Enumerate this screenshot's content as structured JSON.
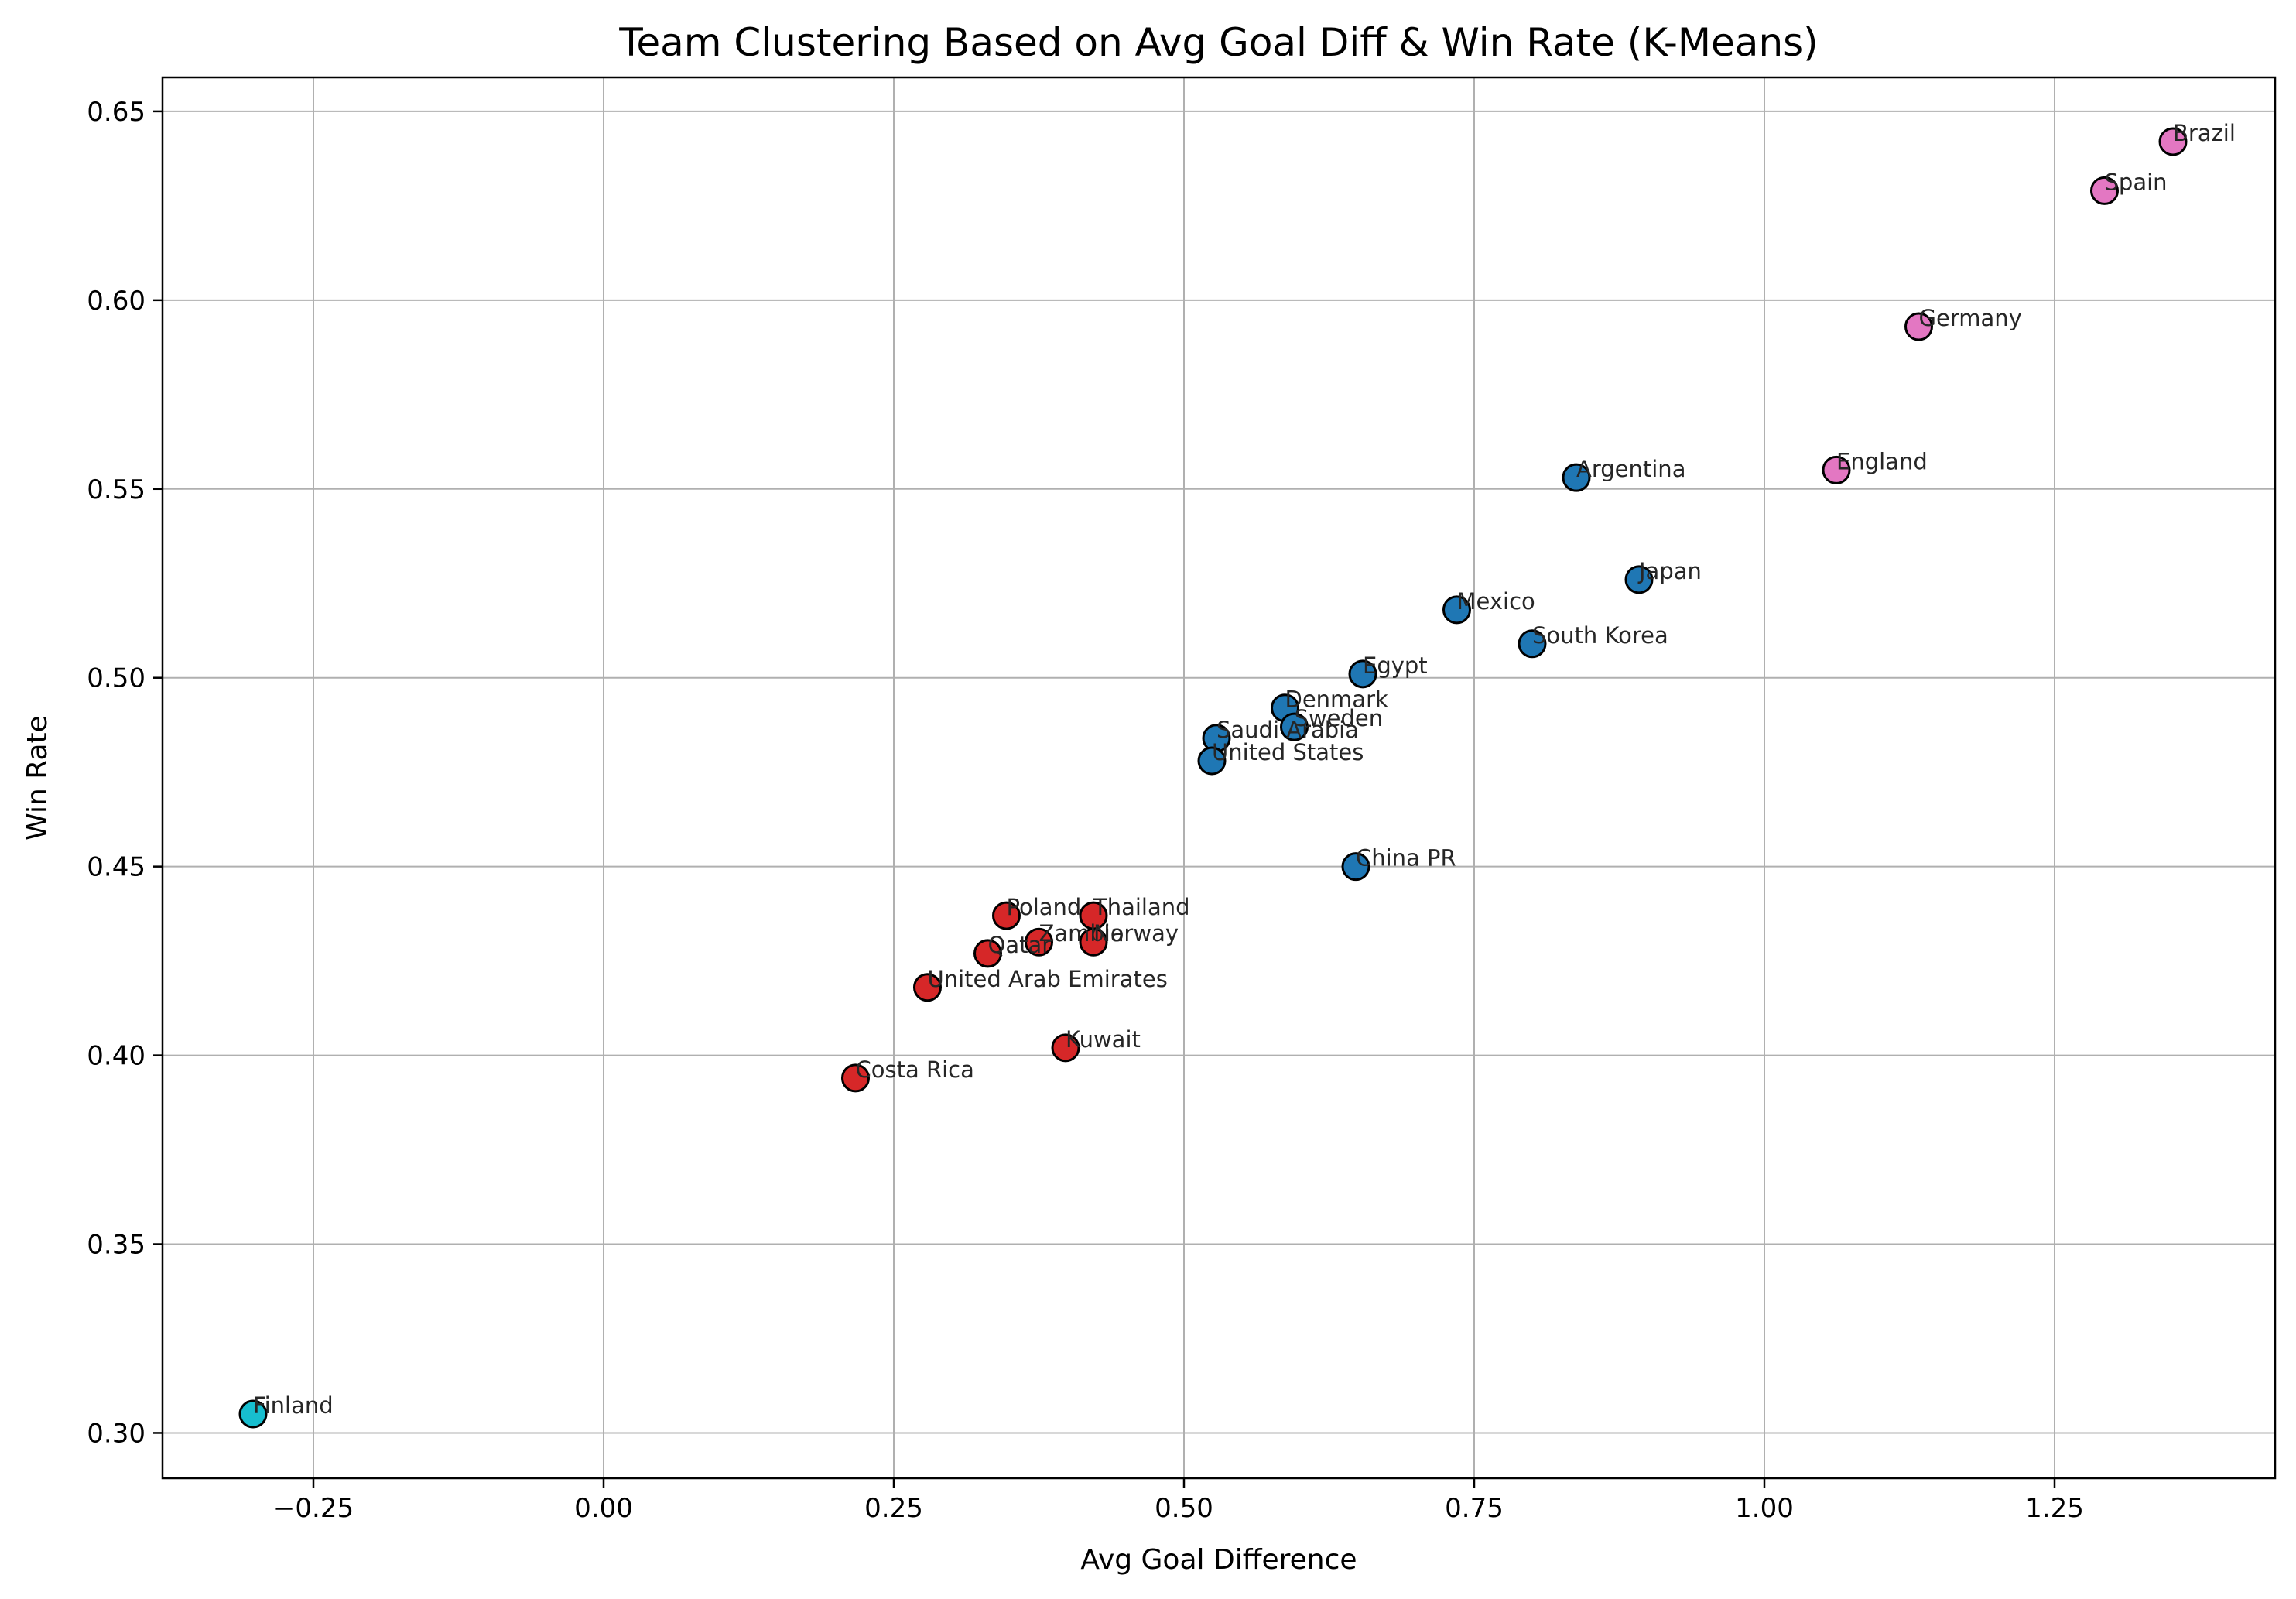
{
  "chart_data": {
    "type": "scatter",
    "title": "Team Clustering Based on Avg Goal Diff & Win Rate (K-Means)",
    "xlabel": "Avg Goal Difference",
    "ylabel": "Win Rate",
    "xlim": [
      -0.38,
      1.44
    ],
    "ylim": [
      0.288,
      0.659
    ],
    "xticks": [
      -0.25,
      0.0,
      0.25,
      0.5,
      0.75,
      1.0,
      1.25
    ],
    "xtick_labels": [
      "−0.25",
      "0.00",
      "0.25",
      "0.50",
      "0.75",
      "1.00",
      "1.25"
    ],
    "yticks": [
      0.3,
      0.35,
      0.4,
      0.45,
      0.5,
      0.55,
      0.6,
      0.65
    ],
    "ytick_labels": [
      "0.30",
      "0.35",
      "0.40",
      "0.45",
      "0.50",
      "0.55",
      "0.60",
      "0.65"
    ],
    "grid": true,
    "cluster_colors": {
      "0": "#1f77b4",
      "1": "#d62728",
      "2": "#e377c2",
      "3": "#17becf"
    },
    "points": [
      {
        "label": "Brazil",
        "x": 1.352,
        "y": 0.642,
        "cluster": 2
      },
      {
        "label": "Spain",
        "x": 1.293,
        "y": 0.629,
        "cluster": 2
      },
      {
        "label": "Germany",
        "x": 1.133,
        "y": 0.593,
        "cluster": 2
      },
      {
        "label": "England",
        "x": 1.062,
        "y": 0.555,
        "cluster": 2
      },
      {
        "label": "Argentina",
        "x": 0.838,
        "y": 0.553,
        "cluster": 0
      },
      {
        "label": "Japan",
        "x": 0.892,
        "y": 0.526,
        "cluster": 0
      },
      {
        "label": "Mexico",
        "x": 0.735,
        "y": 0.518,
        "cluster": 0
      },
      {
        "label": "South Korea",
        "x": 0.8,
        "y": 0.509,
        "cluster": 0
      },
      {
        "label": "Egypt",
        "x": 0.654,
        "y": 0.501,
        "cluster": 0
      },
      {
        "label": "Denmark",
        "x": 0.587,
        "y": 0.492,
        "cluster": 0
      },
      {
        "label": "Sweden",
        "x": 0.595,
        "y": 0.487,
        "cluster": 0
      },
      {
        "label": "Saudi Arabia",
        "x": 0.528,
        "y": 0.484,
        "cluster": 0
      },
      {
        "label": "United States",
        "x": 0.524,
        "y": 0.478,
        "cluster": 0
      },
      {
        "label": "China PR",
        "x": 0.648,
        "y": 0.45,
        "cluster": 0
      },
      {
        "label": "Poland",
        "x": 0.347,
        "y": 0.437,
        "cluster": 1
      },
      {
        "label": "Thailand",
        "x": 0.422,
        "y": 0.437,
        "cluster": 1
      },
      {
        "label": "Zambia",
        "x": 0.375,
        "y": 0.43,
        "cluster": 1
      },
      {
        "label": "Norway",
        "x": 0.422,
        "y": 0.43,
        "cluster": 1
      },
      {
        "label": "Qatar",
        "x": 0.331,
        "y": 0.427,
        "cluster": 1
      },
      {
        "label": "United Arab Emirates",
        "x": 0.279,
        "y": 0.418,
        "cluster": 1
      },
      {
        "label": "Kuwait",
        "x": 0.398,
        "y": 0.402,
        "cluster": 1
      },
      {
        "label": "Costa Rica",
        "x": 0.217,
        "y": 0.394,
        "cluster": 1
      },
      {
        "label": "Finland",
        "x": -0.302,
        "y": 0.305,
        "cluster": 3
      }
    ]
  }
}
